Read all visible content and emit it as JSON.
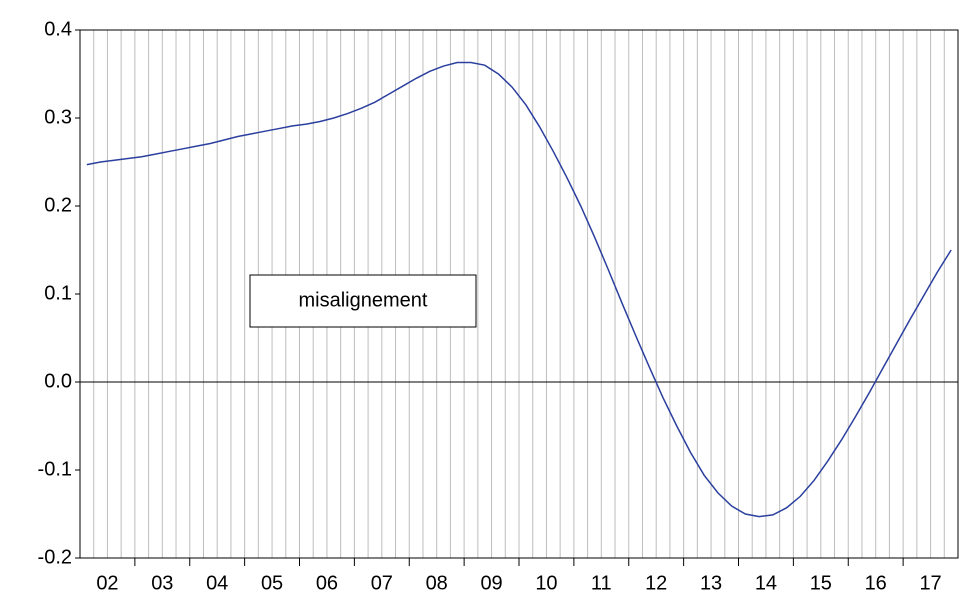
{
  "chart_data": {
    "type": "line",
    "annotation": "misalignement",
    "categories": [
      null,
      "02",
      null,
      null,
      null,
      "03",
      null,
      null,
      null,
      "04",
      null,
      null,
      null,
      "05",
      null,
      null,
      null,
      "06",
      null,
      null,
      null,
      "07",
      null,
      null,
      null,
      "08",
      null,
      null,
      null,
      "09",
      null,
      null,
      null,
      "10",
      null,
      null,
      null,
      "11",
      null,
      null,
      null,
      "12",
      null,
      null,
      null,
      "13",
      null,
      null,
      null,
      "14",
      null,
      null,
      null,
      "15",
      null,
      null,
      null,
      "16",
      null,
      null,
      null,
      "17",
      null,
      null
    ],
    "series": [
      {
        "color": "#2b3f9e",
        "values": [
          0.247,
          0.25,
          0.252,
          0.254,
          0.256,
          0.259,
          0.262,
          0.265,
          0.268,
          0.271,
          0.275,
          0.279,
          0.282,
          0.285,
          0.288,
          0.291,
          0.293,
          0.296,
          0.3,
          0.305,
          0.311,
          0.318,
          0.327,
          0.336,
          0.345,
          0.353,
          0.359,
          0.363,
          0.363,
          0.36,
          0.35,
          0.335,
          0.315,
          0.29,
          0.262,
          0.232,
          0.2,
          0.165,
          0.128,
          0.09,
          0.053,
          0.017,
          -0.018,
          -0.05,
          -0.08,
          -0.106,
          -0.126,
          -0.141,
          -0.15,
          -0.153,
          -0.151,
          -0.143,
          -0.13,
          -0.112,
          -0.09,
          -0.066,
          -0.04,
          -0.013,
          0.015,
          0.043,
          0.071,
          0.098,
          0.125,
          0.15
        ]
      }
    ],
    "ylim": [
      -0.2,
      0.4
    ],
    "yticks": [
      -0.2,
      -0.1,
      {
        "value": 0,
        "label": "0.0"
      },
      0.1,
      0.2,
      0.3,
      0.4
    ],
    "grid": true,
    "zero_line": true
  }
}
